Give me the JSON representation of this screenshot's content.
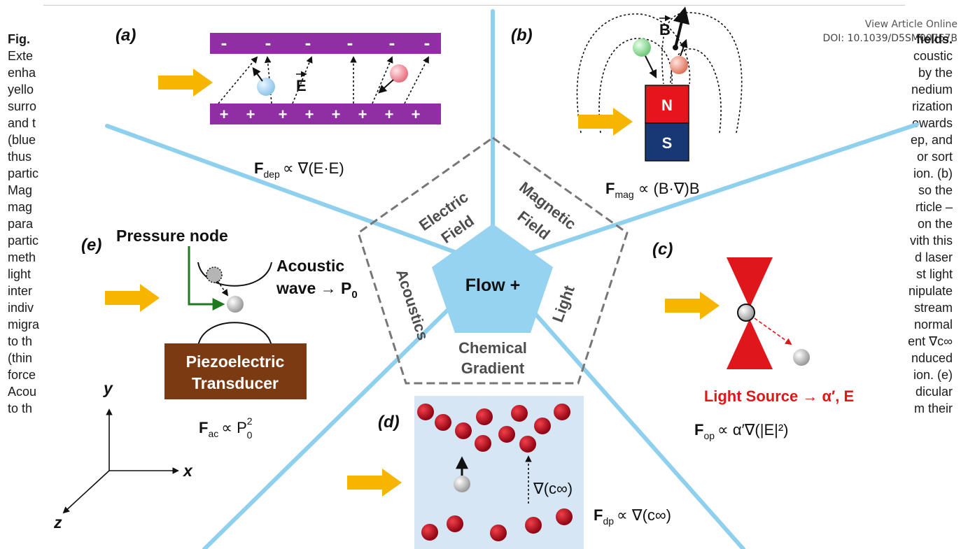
{
  "header": {
    "view_article": "View Article Online",
    "doi": "DOI: 10.1039/D5SM00767B"
  },
  "caption": {
    "fig_label": "Fig.",
    "left_fragments": [
      "Exte",
      "enha",
      "yello",
      "surro",
      "and t",
      "(blue",
      "thus",
      "partic",
      "Mag",
      "mag",
      "para",
      "partic",
      "meth",
      "light",
      "inter",
      "indiv",
      "migra",
      "to th",
      "(thin",
      "force",
      "Acou",
      "to th"
    ],
    "right_fragments": [
      "fields.",
      "coustic",
      "by the",
      "nedium",
      "rization",
      "owards",
      "ep, and",
      "or sort",
      "ion. (b)",
      "so the",
      "rticle –",
      "on the",
      "vith this",
      "d laser",
      "st light",
      "nipulate",
      "stream",
      "normal",
      "ent ∇c∞",
      "nduced",
      "ion. (e)",
      "dicular",
      "m their"
    ]
  },
  "figure": {
    "center_label": "Flow +",
    "sectors": {
      "electric": [
        "Electric",
        "Field"
      ],
      "magnetic": [
        "Magnetic",
        "Field"
      ],
      "light": "Light",
      "chemical": [
        "Chemical",
        "Gradient"
      ],
      "acoustics": "Acoustics"
    },
    "panel_labels": {
      "a": "a",
      "b": "b",
      "c": "c",
      "d": "d",
      "e": "e"
    },
    "panel_a": {
      "minus": "-",
      "plus": "+",
      "field_symbol": "E",
      "force_main": "F",
      "force_sub": "dep",
      "force_rhs": "∝ ∇(E·E)"
    },
    "panel_b": {
      "field_symbol": "B",
      "north": "N",
      "south": "S",
      "force_main": "F",
      "force_sub": "mag",
      "force_rhs": "∝ (B·∇)B"
    },
    "panel_c": {
      "source_label": "Light Source → α′, E",
      "force_main": "F",
      "force_sub": "op",
      "force_rhs": "∝ α′∇(|E|²)"
    },
    "panel_d": {
      "gradient_label": "∇(c∞)",
      "force_main": "F",
      "force_sub": "dp",
      "force_rhs": "∝ ∇(c∞)"
    },
    "panel_e": {
      "pressure_node": "Pressure node",
      "acoustic_wave": "Acoustic",
      "wave_line": "wave → P",
      "wave_sub": "0",
      "transducer_line1": "Piezoelectric",
      "transducer_line2": "Transducer",
      "force_main": "F",
      "force_sub": "ac",
      "force_rhs": "∝ P",
      "force_rhs_sup": "2",
      "force_rhs_sub": "0"
    },
    "axes": {
      "x": "x",
      "y": "y",
      "z": "z"
    }
  },
  "colors": {
    "electrode": "#8f2fa3",
    "flow_arrow": "#f7b500",
    "divider": "#8fd0ee",
    "center": "#95d3f1",
    "laser": "#e0171a",
    "magnet_north": "#e8141c",
    "magnet_south": "#173875",
    "transducer": "#7b3a12",
    "gradient_box": "#d6e6f4",
    "particle_red": "#b5061a",
    "node_line": "#1f7a1f"
  }
}
